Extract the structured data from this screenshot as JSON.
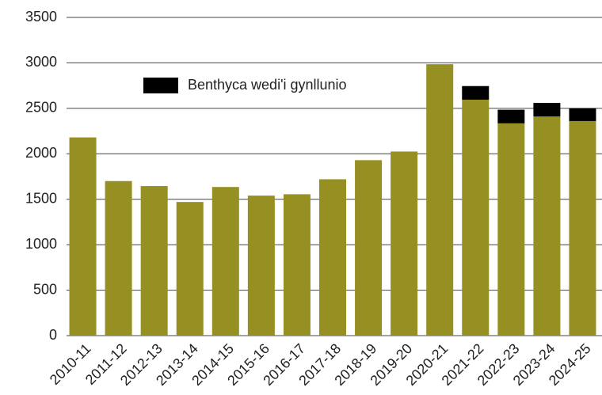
{
  "chart_data": {
    "type": "bar",
    "stacked": true,
    "categories": [
      "2010-11",
      "2011-12",
      "2012-13",
      "2013-14",
      "2014-15",
      "2015-16",
      "2016-17",
      "2017-18",
      "2018-19",
      "2019-20",
      "2020-21",
      "2021-22",
      "2022-23",
      "2023-24",
      "2024-25"
    ],
    "series": [
      {
        "color": "#968f22",
        "values": [
          2180,
          1700,
          1645,
          1470,
          1635,
          1540,
          1555,
          1720,
          1930,
          2025,
          2985,
          2595,
          2335,
          2410,
          2360
        ]
      },
      {
        "name": "Benthyca wedi'i gynllunio",
        "color": "#000000",
        "values": [
          null,
          null,
          null,
          null,
          null,
          null,
          null,
          null,
          null,
          null,
          null,
          150,
          150,
          150,
          140
        ]
      }
    ],
    "ylim": [
      0,
      3500
    ],
    "yticks": [
      0,
      500,
      1000,
      1500,
      2000,
      2500,
      3000,
      3500
    ],
    "grid": true,
    "legend": "upper left"
  }
}
